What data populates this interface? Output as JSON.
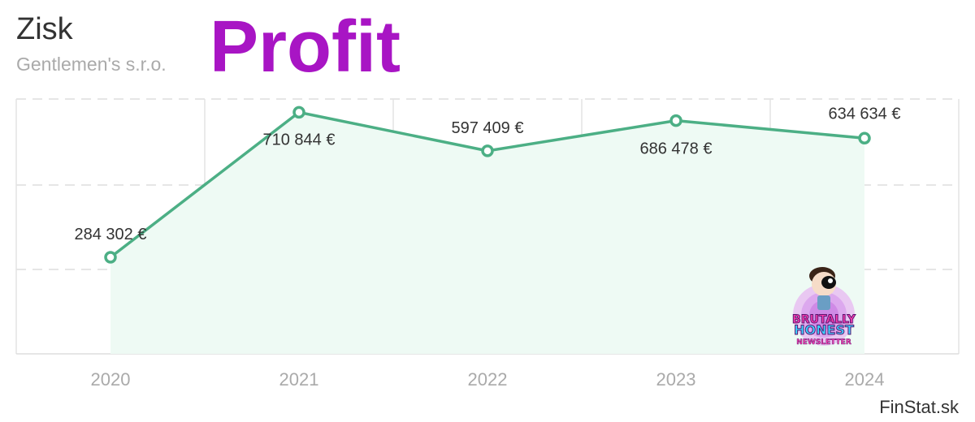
{
  "header": {
    "title": "Zisk",
    "subtitle": "Gentlemen's s.r.o.",
    "overlay_word": "Profit"
  },
  "footer": {
    "source": "FinStat.sk"
  },
  "badge": {
    "line1": "BRUTALLY",
    "line2": "HONEST",
    "line3": "NEWSLETTER"
  },
  "colors": {
    "line": "#4caf85",
    "area": "#eefaf4",
    "overlay": "#a815c4"
  },
  "chart_data": {
    "type": "line",
    "title": "Zisk",
    "subtitle": "Gentlemen's s.r.o.",
    "categories": [
      "2020",
      "2021",
      "2022",
      "2023",
      "2024"
    ],
    "series": [
      {
        "values": [
          284302,
          710844,
          597409,
          686478,
          634634
        ],
        "labels": [
          "284 302 €",
          "710 844 €",
          "597 409 €",
          "686 478 €",
          "634 634 €"
        ]
      }
    ],
    "ylim": [
      0,
      750000
    ],
    "grid": true,
    "area_fill": true,
    "legend": "none"
  }
}
